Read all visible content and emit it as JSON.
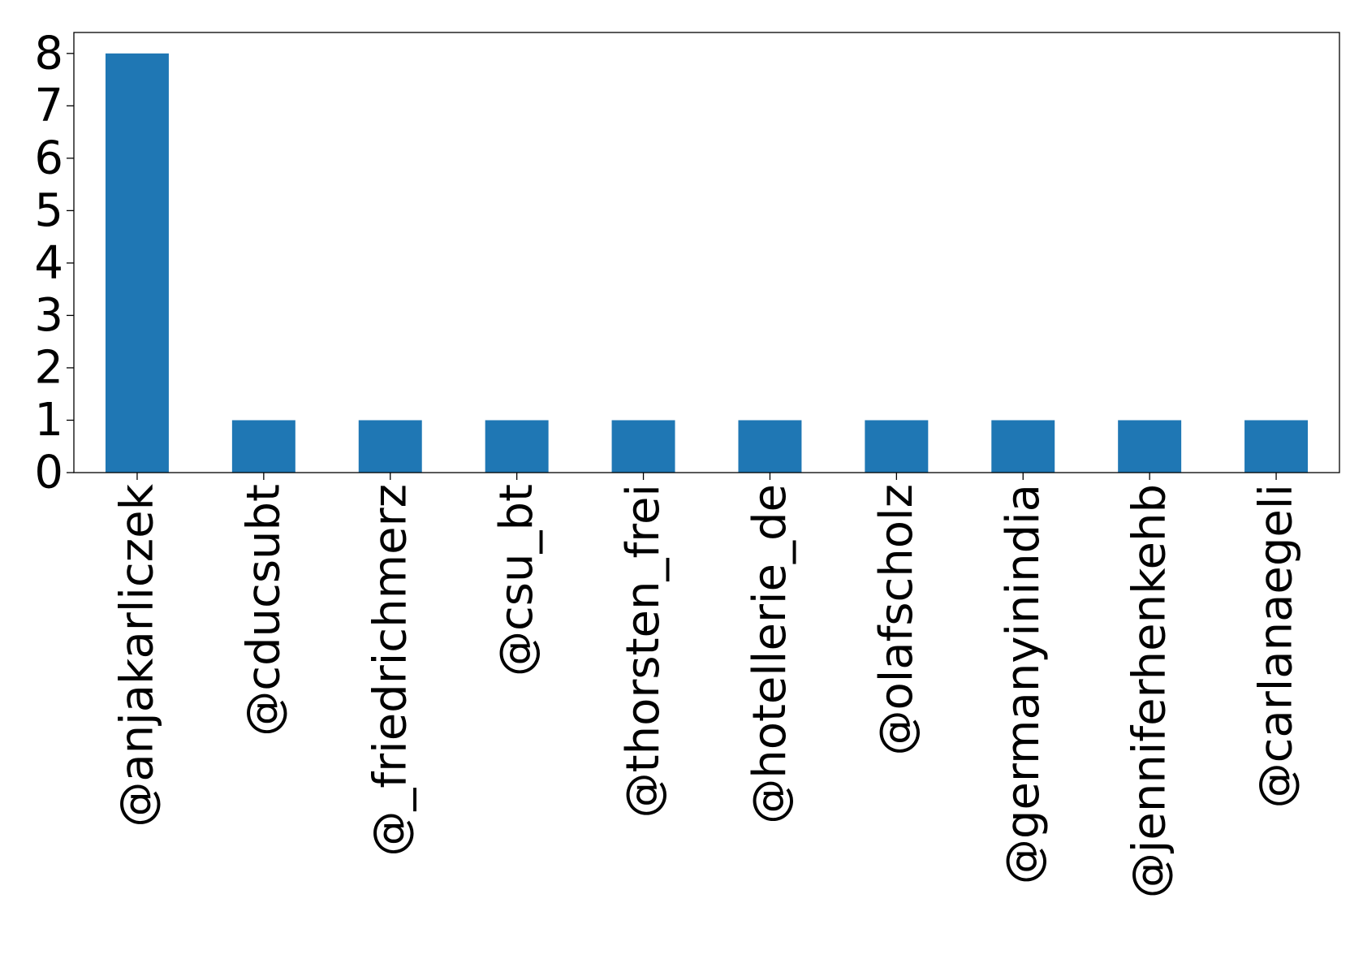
{
  "chart_data": {
    "type": "bar",
    "title": "",
    "xlabel": "",
    "ylabel": "",
    "categories": [
      "@anjakarliczek",
      "@cducsubt",
      "@_friedrichmerz",
      "@csu_bt",
      "@thorsten_frei",
      "@hotellerie_de",
      "@olafscholz",
      "@germanyinindia",
      "@jenniferhenkehb",
      "@carlanaegeli"
    ],
    "values": [
      8,
      1,
      1,
      1,
      1,
      1,
      1,
      1,
      1,
      1
    ],
    "ylim": [
      0,
      8.4
    ],
    "yticks": [
      0,
      1,
      2,
      3,
      4,
      5,
      6,
      7,
      8
    ],
    "grid": false,
    "legend": "none",
    "bar_color": "#1f77b4"
  }
}
